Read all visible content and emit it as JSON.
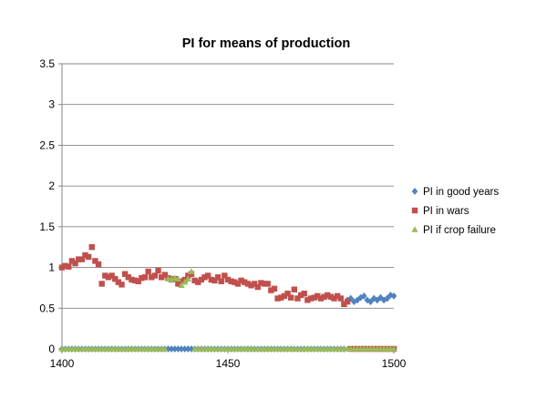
{
  "chart_data": {
    "type": "scatter",
    "title": "PI for means of production",
    "xlabel": "",
    "ylabel": "",
    "xlim": [
      1400,
      1500
    ],
    "ylim": [
      0,
      3.5
    ],
    "x_ticks": [
      "1400",
      "1450",
      "1500"
    ],
    "y_ticks": [
      "0",
      "0.5",
      "1",
      "1.5",
      "2",
      "2.5",
      "3",
      "3.5"
    ],
    "grid": "horizontal",
    "legend_position": "right",
    "series": [
      {
        "name": "PI in good years",
        "color": "#4F81BD",
        "marker": "diamond",
        "x": [
          1400,
          1401,
          1402,
          1403,
          1404,
          1405,
          1406,
          1407,
          1408,
          1409,
          1410,
          1411,
          1412,
          1413,
          1414,
          1415,
          1416,
          1417,
          1418,
          1419,
          1420,
          1421,
          1422,
          1423,
          1424,
          1425,
          1426,
          1427,
          1428,
          1429,
          1430,
          1431,
          1432,
          1433,
          1434,
          1435,
          1436,
          1437,
          1438,
          1439,
          1440,
          1441,
          1442,
          1443,
          1444,
          1445,
          1446,
          1447,
          1448,
          1449,
          1450,
          1451,
          1452,
          1453,
          1454,
          1455,
          1456,
          1457,
          1458,
          1459,
          1460,
          1461,
          1462,
          1463,
          1464,
          1465,
          1466,
          1467,
          1468,
          1469,
          1470,
          1471,
          1472,
          1473,
          1474,
          1475,
          1476,
          1477,
          1478,
          1479,
          1480,
          1481,
          1482,
          1483,
          1484,
          1485,
          1486,
          1487,
          1488,
          1489,
          1490,
          1491,
          1492,
          1493,
          1494,
          1495,
          1496,
          1497,
          1498,
          1499,
          1500
        ],
        "y": [
          0,
          0,
          0,
          0,
          0,
          0,
          0,
          0,
          0,
          0,
          0,
          0,
          0,
          0,
          0,
          0,
          0,
          0,
          0,
          0,
          0,
          0,
          0,
          0,
          0,
          0,
          0,
          0,
          0,
          0,
          0,
          0,
          0,
          0,
          0,
          0,
          0,
          0,
          0,
          0,
          0,
          0,
          0,
          0,
          0,
          0,
          0,
          0,
          0,
          0,
          0,
          0,
          0,
          0,
          0,
          0,
          0,
          0,
          0,
          0,
          0,
          0,
          0,
          0,
          0,
          0,
          0,
          0,
          0,
          0,
          0,
          0,
          0,
          0,
          0,
          0,
          0,
          0,
          0,
          0,
          0,
          0,
          0,
          0,
          0,
          0,
          0.6,
          0.62,
          0.58,
          0.6,
          0.63,
          0.65,
          0.6,
          0.58,
          0.62,
          0.6,
          0.63,
          0.6,
          0.62,
          0.66,
          0.65
        ]
      },
      {
        "name": "PI in wars",
        "color": "#C0504D",
        "marker": "square",
        "x": [
          1400,
          1401,
          1402,
          1403,
          1404,
          1405,
          1406,
          1407,
          1408,
          1409,
          1410,
          1411,
          1412,
          1413,
          1414,
          1415,
          1416,
          1417,
          1418,
          1419,
          1420,
          1421,
          1422,
          1423,
          1424,
          1425,
          1426,
          1427,
          1428,
          1429,
          1430,
          1431,
          1432,
          1433,
          1434,
          1435,
          1436,
          1437,
          1438,
          1439,
          1440,
          1441,
          1442,
          1443,
          1444,
          1445,
          1446,
          1447,
          1448,
          1449,
          1450,
          1451,
          1452,
          1453,
          1454,
          1455,
          1456,
          1457,
          1458,
          1459,
          1460,
          1461,
          1462,
          1463,
          1464,
          1465,
          1466,
          1467,
          1468,
          1469,
          1470,
          1471,
          1472,
          1473,
          1474,
          1475,
          1476,
          1477,
          1478,
          1479,
          1480,
          1481,
          1482,
          1483,
          1484,
          1485,
          1486,
          1487,
          1488,
          1489,
          1490,
          1491,
          1492,
          1493,
          1494,
          1495,
          1496,
          1497,
          1498,
          1499,
          1500
        ],
        "y": [
          1.0,
          1.02,
          1.01,
          1.08,
          1.05,
          1.1,
          1.1,
          1.15,
          1.13,
          1.25,
          1.08,
          1.04,
          0.8,
          0.9,
          0.88,
          0.9,
          0.86,
          0.82,
          0.79,
          0.92,
          0.88,
          0.85,
          0.84,
          0.83,
          0.87,
          0.88,
          0.95,
          0.88,
          0.9,
          0.96,
          0.88,
          0.91,
          0.87,
          0.85,
          0.86,
          0.8,
          0.83,
          0.85,
          0.9,
          0.92,
          0.84,
          0.82,
          0.85,
          0.88,
          0.9,
          0.85,
          0.84,
          0.88,
          0.83,
          0.9,
          0.85,
          0.83,
          0.82,
          0.8,
          0.84,
          0.82,
          0.8,
          0.78,
          0.8,
          0.76,
          0.81,
          0.8,
          0.8,
          0.72,
          0.74,
          0.62,
          0.63,
          0.65,
          0.68,
          0.63,
          0.73,
          0.62,
          0.66,
          0.68,
          0.6,
          0.62,
          0.63,
          0.65,
          0.62,
          0.64,
          0.66,
          0.64,
          0.62,
          0.65,
          0.62,
          0.55,
          0.58,
          0,
          0,
          0,
          0,
          0,
          0,
          0,
          0,
          0,
          0,
          0,
          0,
          0,
          0
        ]
      },
      {
        "name": "PI if crop failure",
        "color": "#9BBB59",
        "marker": "triangle",
        "x": [
          1400,
          1401,
          1402,
          1403,
          1404,
          1405,
          1406,
          1407,
          1408,
          1409,
          1410,
          1411,
          1412,
          1413,
          1414,
          1415,
          1416,
          1417,
          1418,
          1419,
          1420,
          1421,
          1422,
          1423,
          1424,
          1425,
          1426,
          1427,
          1428,
          1429,
          1430,
          1431,
          1432,
          1433,
          1434,
          1435,
          1436,
          1437,
          1438,
          1439,
          1440,
          1441,
          1442,
          1443,
          1444,
          1445,
          1446,
          1447,
          1448,
          1449,
          1450,
          1451,
          1452,
          1453,
          1454,
          1455,
          1456,
          1457,
          1458,
          1459,
          1460,
          1461,
          1462,
          1463,
          1464,
          1465,
          1466,
          1467,
          1468,
          1469,
          1470,
          1471,
          1472,
          1473,
          1474,
          1475,
          1476,
          1477,
          1478,
          1479,
          1480,
          1481,
          1482,
          1483,
          1484,
          1485,
          1486,
          1487,
          1488,
          1489,
          1490,
          1491,
          1492,
          1493,
          1494,
          1495,
          1496,
          1497,
          1498,
          1499,
          1500
        ],
        "y": [
          0,
          0,
          0,
          0,
          0,
          0,
          0,
          0,
          0,
          0,
          0,
          0,
          0,
          0,
          0,
          0,
          0,
          0,
          0,
          0,
          0,
          0,
          0,
          0,
          0,
          0,
          0,
          0,
          0,
          0,
          0,
          0,
          0.86,
          0.85,
          0.87,
          0.86,
          0.78,
          0.82,
          0.86,
          0.95,
          0,
          0,
          0,
          0,
          0,
          0,
          0,
          0,
          0,
          0,
          0,
          0,
          0,
          0,
          0,
          0,
          0,
          0,
          0,
          0,
          0,
          0,
          0,
          0,
          0,
          0,
          0,
          0,
          0,
          0,
          0,
          0,
          0,
          0,
          0,
          0,
          0,
          0,
          0,
          0,
          0,
          0,
          0,
          0,
          0,
          0,
          0,
          0,
          0,
          0,
          0,
          0,
          0,
          0,
          0,
          0,
          0,
          0,
          0,
          0,
          0
        ]
      }
    ]
  }
}
